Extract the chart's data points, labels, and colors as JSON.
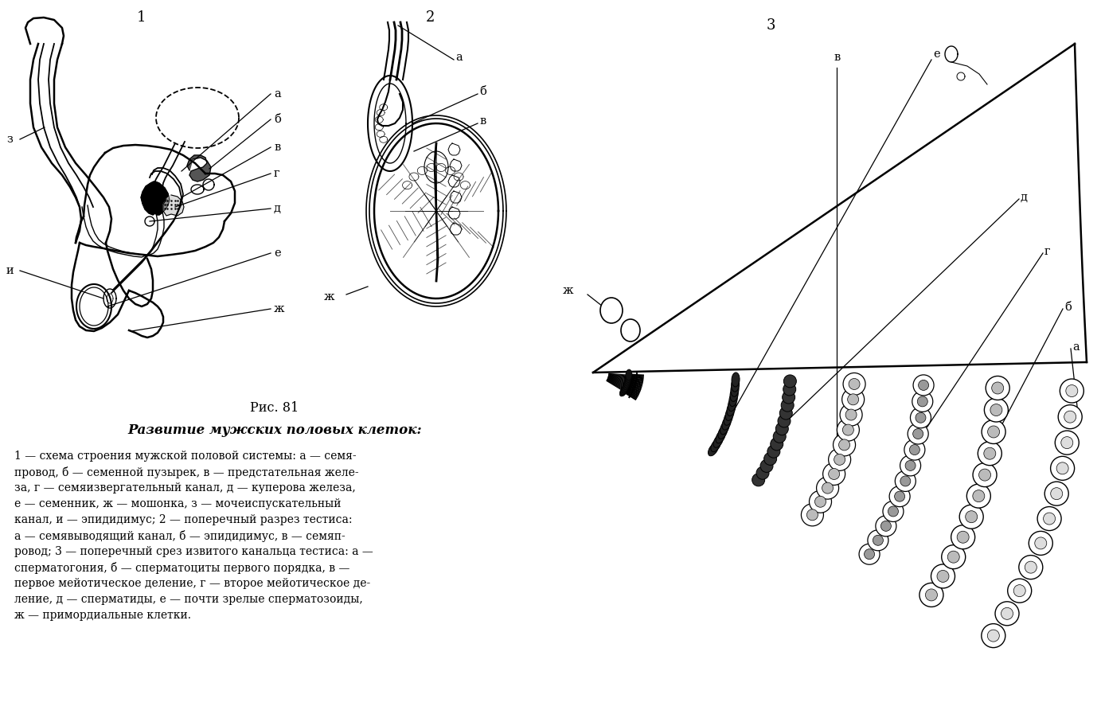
{
  "bg_color": "#ffffff",
  "fig_number": "Рис. 81",
  "title": "Развитие мужских половых клеток:",
  "caption_lines": [
    "1 — схема строения мужской половой системы: а — семя-",
    "провод, б — семенной пузырек, в — предстательная желе-",
    "за, г — семяизвергательный канал, д — куперова железа,",
    "е — семенник, ж — мошонка, з — мочеиспускательный",
    "канал, и — эпидидимус; 2 — поперечный разрез тестиса:",
    "а — семявыводящий канал, б — эпидидимус, в — семяп-",
    "ровод; 3 — поперечный срез извитого канальца тестиса: а —",
    "сперматогония, б — сперматоциты первого порядка, в —",
    "первое мейотическое деление, г — второе мейотическое де-",
    "ление, д — сперматиды, е — почти зрелые сперматозоиды,",
    "ж — примордиальные клетки."
  ],
  "diagram1_number": "1",
  "diagram2_number": "2",
  "diagram3_number": "3"
}
